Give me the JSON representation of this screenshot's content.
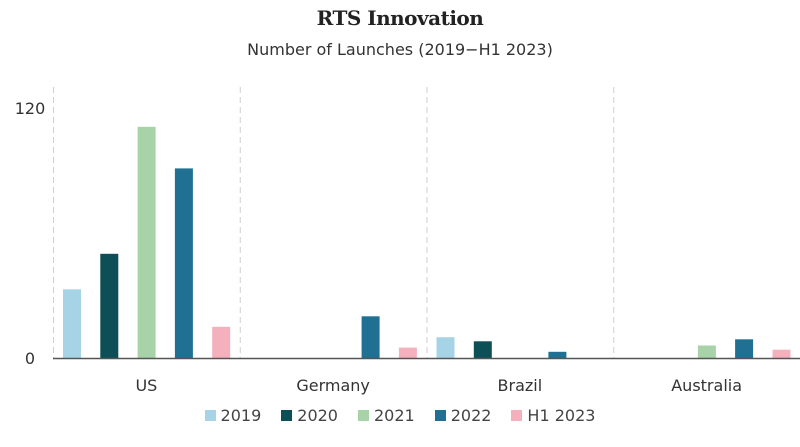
{
  "chart_data": {
    "type": "bar",
    "title": "RTS Innovation",
    "subtitle": "Number of Launches (2019−H1 2023)",
    "xlabel": "",
    "ylabel": "",
    "ylim": [
      0,
      120
    ],
    "yticks": [
      "0",
      "120"
    ],
    "ytick_values": [
      0,
      120
    ],
    "grid": false,
    "legend_position": "bottom",
    "categories": [
      "US",
      "Germany",
      "Brazil",
      "Australia"
    ],
    "series": [
      {
        "name": "2019",
        "color": "#a6d4e6",
        "values": [
          33,
          0,
          10,
          0
        ]
      },
      {
        "name": "2020",
        "color": "#0d4f56",
        "values": [
          50,
          0,
          8,
          0
        ]
      },
      {
        "name": "2021",
        "color": "#a8d3a8",
        "values": [
          111,
          0,
          0,
          6
        ]
      },
      {
        "name": "2022",
        "color": "#1f7093",
        "values": [
          91,
          20,
          3,
          9
        ]
      },
      {
        "name": "H1 2023",
        "color": "#f4b0bd",
        "values": [
          15,
          5,
          0,
          4
        ]
      }
    ]
  }
}
